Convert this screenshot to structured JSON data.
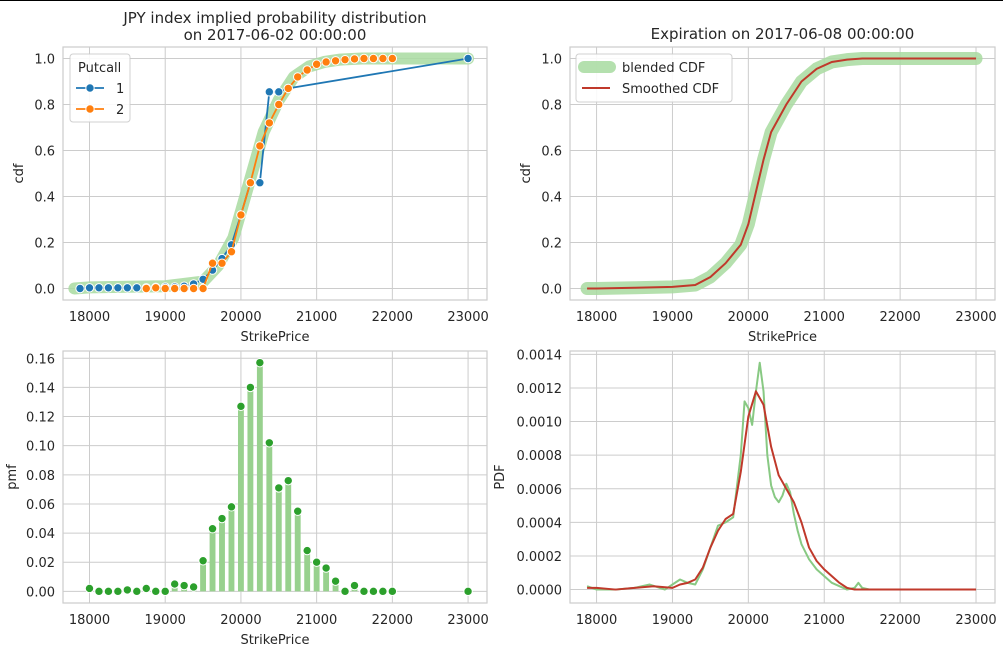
{
  "chart_data": [
    {
      "type": "line",
      "title": "JPY index implied probability distribution\non 2017-06-02 00:00:00",
      "xlabel": "StrikePrice",
      "ylabel": "cdf",
      "xlim": [
        17650,
        23250
      ],
      "ylim": [
        -0.05,
        1.05
      ],
      "xticks": [
        18000,
        19000,
        20000,
        21000,
        22000,
        23000
      ],
      "yticks": [
        0.0,
        0.2,
        0.4,
        0.6,
        0.8,
        1.0
      ],
      "xtick_labels": [
        "18000",
        "19000",
        "20000",
        "21000",
        "22000",
        "23000"
      ],
      "ytick_labels": [
        "0.0",
        "0.2",
        "0.4",
        "0.6",
        "0.8",
        "1.0"
      ],
      "grid": true,
      "legend": {
        "title": "Putcall",
        "position": "top-left",
        "entries": [
          "1",
          "2"
        ]
      },
      "background_band": {
        "color": "#a8dba0",
        "x": [
          17800,
          18000,
          19000,
          19500,
          19700,
          19900,
          20100,
          20300,
          20500,
          20700,
          20900,
          21100,
          21300,
          21600,
          22000,
          23000
        ],
        "y": [
          0.0,
          0.005,
          0.01,
          0.03,
          0.1,
          0.22,
          0.45,
          0.68,
          0.82,
          0.92,
          0.965,
          0.985,
          0.995,
          1.0,
          1.0,
          1.0
        ]
      },
      "series": [
        {
          "name": "1",
          "color": "#1f77b4",
          "x": [
            17875,
            18000,
            18125,
            18250,
            18375,
            18500,
            18625,
            18750,
            18875,
            19000,
            19125,
            19250,
            19375,
            19500,
            19625,
            19750,
            19875,
            20000,
            20125,
            20250,
            20375,
            20500,
            20625,
            23000
          ],
          "y": [
            0.0,
            0.003,
            0.003,
            0.003,
            0.003,
            0.003,
            0.003,
            0.003,
            0.005,
            0.006,
            0.007,
            0.01,
            0.02,
            0.04,
            0.08,
            0.13,
            0.19,
            0.32,
            0.46,
            0.46,
            0.855,
            0.855,
            0.87,
            1.0
          ]
        },
        {
          "name": "2",
          "color": "#ff7f0e",
          "x": [
            18750,
            18875,
            19000,
            19125,
            19250,
            19375,
            19500,
            19625,
            19750,
            19875,
            20000,
            20125,
            20250,
            20375,
            20500,
            20625,
            20750,
            20875,
            21000,
            21125,
            21250,
            21375,
            21500,
            21625,
            21750,
            21875,
            22000
          ],
          "y": [
            0.0,
            0.003,
            0.0,
            0.0,
            0.0,
            0.0,
            0.0,
            0.11,
            0.11,
            0.16,
            0.32,
            0.46,
            0.62,
            0.72,
            0.8,
            0.87,
            0.92,
            0.95,
            0.975,
            0.985,
            0.99,
            0.995,
            0.998,
            1.0,
            1.0,
            1.0,
            1.0
          ]
        }
      ]
    },
    {
      "type": "line",
      "title": "Expiration on 2017-06-08 00:00:00",
      "xlabel": "StrikePrice",
      "ylabel": "cdf",
      "xlim": [
        17650,
        23250
      ],
      "ylim": [
        -0.05,
        1.05
      ],
      "xticks": [
        18000,
        19000,
        20000,
        21000,
        22000,
        23000
      ],
      "yticks": [
        0.0,
        0.2,
        0.4,
        0.6,
        0.8,
        1.0
      ],
      "xtick_labels": [
        "18000",
        "19000",
        "20000",
        "21000",
        "22000",
        "23000"
      ],
      "ytick_labels": [
        "0.0",
        "0.2",
        "0.4",
        "0.6",
        "0.8",
        "1.0"
      ],
      "grid": true,
      "legend": {
        "position": "top-left",
        "entries": [
          "blended CDF",
          "Smoothed CDF"
        ]
      },
      "series": [
        {
          "name": "blended CDF",
          "color": "#a8dba0",
          "x": [
            17875,
            18000,
            18500,
            19000,
            19300,
            19500,
            19700,
            19900,
            20000,
            20100,
            20200,
            20300,
            20500,
            20700,
            20900,
            21100,
            21300,
            21500,
            22000,
            23000
          ],
          "y": [
            0.0,
            0.0,
            0.003,
            0.007,
            0.015,
            0.05,
            0.11,
            0.19,
            0.28,
            0.42,
            0.56,
            0.68,
            0.8,
            0.9,
            0.955,
            0.985,
            0.995,
            1.0,
            1.0,
            1.0
          ]
        },
        {
          "name": "Smoothed CDF",
          "color": "#c0392b",
          "x": [
            17875,
            18000,
            18500,
            19000,
            19300,
            19500,
            19700,
            19900,
            20000,
            20100,
            20200,
            20300,
            20500,
            20700,
            20900,
            21100,
            21300,
            21500,
            22000,
            23000
          ],
          "y": [
            0.0,
            0.0,
            0.003,
            0.007,
            0.015,
            0.05,
            0.11,
            0.19,
            0.28,
            0.42,
            0.56,
            0.68,
            0.8,
            0.9,
            0.955,
            0.985,
            0.995,
            1.0,
            1.0,
            1.0
          ]
        }
      ]
    },
    {
      "type": "bar",
      "title": "",
      "xlabel": "StrikePrice",
      "ylabel": "pmf",
      "xlim": [
        17650,
        23250
      ],
      "ylim": [
        -0.008,
        0.165
      ],
      "xticks": [
        18000,
        19000,
        20000,
        21000,
        22000,
        23000
      ],
      "yticks": [
        0.0,
        0.02,
        0.04,
        0.06,
        0.08,
        0.1,
        0.12,
        0.14,
        0.16
      ],
      "xtick_labels": [
        "18000",
        "19000",
        "20000",
        "21000",
        "22000",
        "23000"
      ],
      "ytick_labels": [
        "0.00",
        "0.02",
        "0.04",
        "0.06",
        "0.08",
        "0.10",
        "0.12",
        "0.14",
        "0.16"
      ],
      "grid": true,
      "bar_color": "#98d18e",
      "point_color": "#2ca02c",
      "x": [
        18000,
        18125,
        18250,
        18375,
        18500,
        18625,
        18750,
        18875,
        19000,
        19125,
        19250,
        19375,
        19500,
        19625,
        19750,
        19875,
        20000,
        20125,
        20250,
        20375,
        20500,
        20625,
        20750,
        20875,
        21000,
        21125,
        21250,
        21375,
        21500,
        21625,
        21750,
        21875,
        22000,
        23000
      ],
      "values": [
        0.002,
        0.0,
        0.0,
        0.0,
        0.001,
        0.0,
        0.002,
        0.0,
        0.0,
        0.005,
        0.004,
        0.003,
        0.021,
        0.043,
        0.05,
        0.058,
        0.127,
        0.14,
        0.157,
        0.102,
        0.071,
        0.076,
        0.055,
        0.028,
        0.02,
        0.016,
        0.007,
        0.0,
        0.004,
        0.0,
        0.0,
        0.0,
        0.0,
        0.0
      ]
    },
    {
      "type": "line",
      "title": "",
      "xlabel": "",
      "ylabel": "PDF",
      "xlim": [
        17650,
        23250
      ],
      "ylim": [
        -8e-05,
        0.00142
      ],
      "xticks": [
        18000,
        19000,
        20000,
        21000,
        22000,
        23000
      ],
      "yticks": [
        0.0,
        0.0002,
        0.0004,
        0.0006,
        0.0008,
        0.001,
        0.0012,
        0.0014
      ],
      "xtick_labels": [
        "18000",
        "19000",
        "20000",
        "21000",
        "22000",
        "23000"
      ],
      "ytick_labels": [
        "0.0000",
        "0.0002",
        "0.0004",
        "0.0006",
        "0.0008",
        "0.0010",
        "0.0012",
        "0.0014"
      ],
      "grid": true,
      "series": [
        {
          "name": "",
          "color": "#88c983",
          "x": [
            17875,
            18000,
            18250,
            18500,
            18700,
            18900,
            19000,
            19100,
            19200,
            19300,
            19400,
            19500,
            19600,
            19700,
            19800,
            19900,
            19950,
            20000,
            20050,
            20100,
            20150,
            20200,
            20250,
            20300,
            20350,
            20400,
            20450,
            20500,
            20550,
            20600,
            20650,
            20700,
            20800,
            20900,
            21000,
            21100,
            21200,
            21300,
            21400,
            21450,
            21500,
            21600,
            22000,
            23000
          ],
          "y": [
            2e-05,
            0.0,
            0.0,
            1e-05,
            3e-05,
            0.0,
            3e-05,
            6e-05,
            4e-05,
            3e-05,
            0.00012,
            0.00025,
            0.00038,
            0.0004,
            0.00043,
            0.0008,
            0.00112,
            0.00108,
            0.00098,
            0.00118,
            0.00135,
            0.00118,
            0.0008,
            0.00062,
            0.00055,
            0.00052,
            0.00056,
            0.00063,
            0.00058,
            0.00045,
            0.00035,
            0.00027,
            0.00018,
            0.00012,
            8e-05,
            4e-05,
            2e-05,
            0.0,
            1e-05,
            4e-05,
            1e-05,
            0.0,
            0.0,
            0.0
          ]
        },
        {
          "name": "",
          "color": "#c0392b",
          "x": [
            17875,
            18000,
            18250,
            18500,
            18750,
            19000,
            19100,
            19200,
            19300,
            19400,
            19500,
            19600,
            19700,
            19800,
            19900,
            20000,
            20100,
            20200,
            20300,
            20400,
            20500,
            20600,
            20700,
            20800,
            20900,
            21000,
            21100,
            21200,
            21300,
            21400,
            21500,
            21600,
            22000,
            23000
          ],
          "y": [
            1e-05,
            1e-05,
            0.0,
            1e-05,
            2e-05,
            1e-05,
            3e-05,
            4e-05,
            6e-05,
            0.00013,
            0.00025,
            0.00035,
            0.00042,
            0.00045,
            0.0007,
            0.00103,
            0.00118,
            0.0011,
            0.00085,
            0.00068,
            0.0006,
            0.00052,
            0.0004,
            0.00025,
            0.00017,
            0.00012,
            8e-05,
            4e-05,
            1e-05,
            0.0,
            0.0,
            0.0,
            0.0,
            0.0
          ]
        }
      ]
    }
  ]
}
